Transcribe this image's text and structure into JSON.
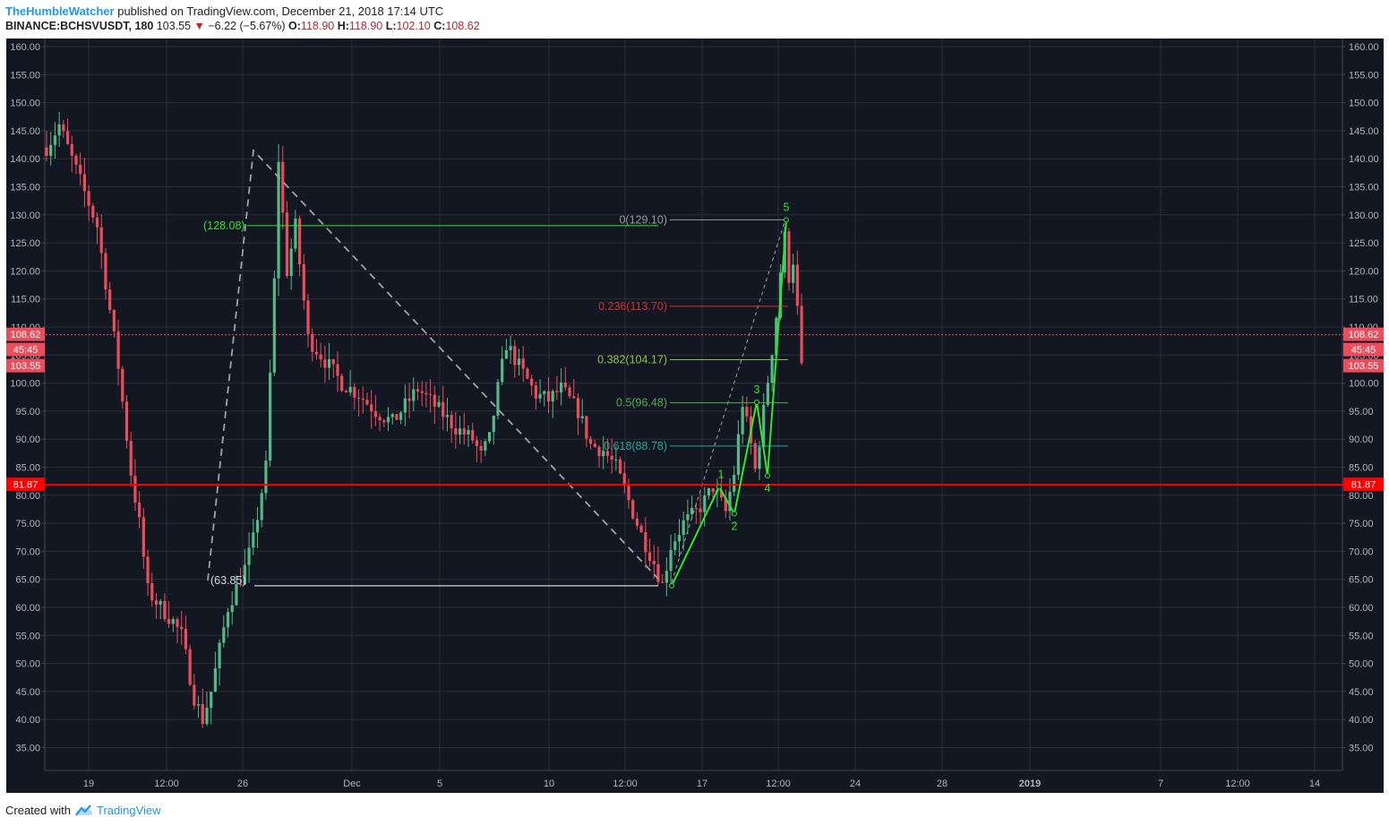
{
  "header": {
    "author": "TheHumbleWatcher",
    "published": "published on TradingView.com, December 21, 2018 17:14 UTC",
    "symbol": "BINANCE:BCHSVUSDT, 180",
    "last": "103.55",
    "change": "−6.22 (−5.67%)",
    "o_label": "O:",
    "o": "118.90",
    "h_label": "H:",
    "h": "118.90",
    "l_label": "L:",
    "l": "102.10",
    "c_label": "C:",
    "c": "108.62"
  },
  "footer": {
    "created": "Created with",
    "brand": "TradingView",
    "logo_icon": "tradingview-cloud-icon"
  },
  "colors": {
    "background": "#131722",
    "grid": "#2a2e39",
    "up": "#53b987",
    "down": "#eb4d5c",
    "support": "#ff0000",
    "wave": "#2ee62e",
    "dashed": "#9ea3ab"
  },
  "chart_data": {
    "type": "candlestick",
    "ylim": [
      32,
      161
    ],
    "y_ticks": [
      35,
      40,
      45,
      50,
      55,
      60,
      65,
      70,
      75,
      80,
      85,
      90,
      95,
      100,
      105,
      110,
      115,
      120,
      125,
      130,
      135,
      140,
      145,
      150,
      155,
      160
    ],
    "x_ticks": [
      "19",
      "12:00",
      "26",
      "Dec",
      "5",
      "10",
      "12:00",
      "17",
      "12:00",
      "24",
      "28",
      "2019",
      "7",
      "12:00",
      "14"
    ],
    "price_path": [
      [
        0,
        142
      ],
      [
        3,
        146
      ],
      [
        8,
        136
      ],
      [
        12,
        128
      ],
      [
        17,
        103
      ],
      [
        20,
        84
      ],
      [
        22,
        75
      ],
      [
        24,
        63
      ],
      [
        27,
        60
      ],
      [
        30,
        57.5
      ],
      [
        32,
        55
      ],
      [
        35,
        44
      ],
      [
        37,
        40
      ],
      [
        39,
        45
      ],
      [
        43,
        60
      ],
      [
        47,
        67
      ],
      [
        49,
        72
      ],
      [
        52,
        85
      ],
      [
        54,
        118
      ],
      [
        55,
        140
      ],
      [
        57,
        120
      ],
      [
        59,
        128
      ],
      [
        62,
        108
      ],
      [
        66,
        104
      ],
      [
        70,
        100
      ],
      [
        74,
        98
      ],
      [
        78,
        95
      ],
      [
        82,
        93
      ],
      [
        85,
        96
      ],
      [
        88,
        99
      ],
      [
        92,
        96
      ],
      [
        97,
        92
      ],
      [
        101,
        90
      ],
      [
        103,
        87
      ],
      [
        105,
        90
      ],
      [
        107,
        99
      ],
      [
        109,
        107
      ],
      [
        112,
        103
      ],
      [
        116,
        98
      ],
      [
        119,
        97
      ],
      [
        122,
        99
      ],
      [
        126,
        95
      ],
      [
        129,
        89
      ],
      [
        132,
        88
      ],
      [
        135,
        85
      ],
      [
        138,
        79
      ],
      [
        141,
        73
      ],
      [
        144,
        68
      ],
      [
        146,
        64
      ],
      [
        148,
        71
      ],
      [
        151,
        75
      ],
      [
        154,
        77
      ],
      [
        156,
        79
      ],
      [
        158,
        81.5
      ],
      [
        161,
        77
      ],
      [
        163,
        84
      ],
      [
        165,
        96.5
      ],
      [
        167,
        89
      ],
      [
        168,
        84.5
      ],
      [
        170,
        95
      ],
      [
        172,
        106
      ],
      [
        173,
        112
      ],
      [
        174,
        120
      ],
      [
        175,
        126
      ],
      [
        176,
        119
      ],
      [
        177,
        122
      ],
      [
        178,
        113
      ],
      [
        179,
        108.62
      ]
    ],
    "current_price": "108.62",
    "current_close": "103.55",
    "countdown": "45:45",
    "support_level": "81.87",
    "fibonacci": {
      "levels": [
        {
          "label": "0(129.10)",
          "value": 129.1
        },
        {
          "label": "0.236(113.70)",
          "value": 113.7
        },
        {
          "label": "0.382(104.17)",
          "value": 104.17
        },
        {
          "label": "0.5(96.48)",
          "value": 96.48
        },
        {
          "label": "0.618(88.78)",
          "value": 88.78
        }
      ]
    },
    "fib_left": {
      "top_label": "(128.08)",
      "top_value": 128.08,
      "bottom_label": "(63.85)",
      "bottom_value": 63.85
    },
    "elliott_waves": [
      {
        "label": "",
        "value": 63.85
      },
      {
        "label": "1",
        "value": 81.5
      },
      {
        "label": "2",
        "value": 76.7
      },
      {
        "label": "3",
        "value": 96.6
      },
      {
        "label": "4",
        "value": 83.5
      },
      {
        "label": "5",
        "value": 129.1
      }
    ]
  }
}
